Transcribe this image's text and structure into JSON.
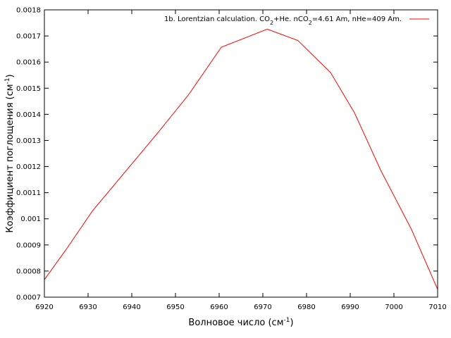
{
  "chart_data": {
    "type": "line",
    "xlabel": "Волновое число (см",
    "xlabel_sup": "-1",
    "xlabel_end": ")",
    "ylabel": "Коэффициент поглощения (см",
    "ylabel_sup": "-1",
    "ylabel_end": ")",
    "xlim": [
      6920,
      7010
    ],
    "ylim": [
      0.0007,
      0.0018
    ],
    "xticks": [
      6920,
      6930,
      6940,
      6950,
      6960,
      6970,
      6980,
      6990,
      7000,
      7010
    ],
    "yticks": [
      0.0007,
      0.0008,
      0.0009,
      0.001,
      0.0011,
      0.0012,
      0.0013,
      0.0014,
      0.0015,
      0.0016,
      0.0017,
      0.0018
    ],
    "xtick_labels": [
      "6920",
      "6930",
      "6940",
      "6950",
      "6960",
      "6970",
      "6980",
      "6990",
      "7000",
      "7010"
    ],
    "ytick_labels": [
      "0.0007",
      "0.0008",
      "0.0009",
      "0.001",
      "0.0011",
      "0.0012",
      "0.0013",
      "0.0014",
      "0.0015",
      "0.0016",
      "0.0017",
      "0.0018"
    ],
    "grid": false,
    "legend_position": "top-right",
    "series": [
      {
        "legend": {
          "prefix": "1b. Lorentzian calculation. CO",
          "sub1": "2",
          "mid": "+He. nCO",
          "sub2": "2",
          "suffix": "=4.61 Am, nHe=409 Am."
        },
        "color": "#ff0000",
        "x": [
          6920,
          6925,
          6931,
          6940,
          6946,
          6953,
          6960.5,
          6971,
          6978,
          6985.5,
          6991,
          6997,
          7004,
          7010
        ],
        "y": [
          0.000767,
          0.000883,
          0.00103,
          0.00121,
          0.00133,
          0.001475,
          0.001657,
          0.001726,
          0.001683,
          0.00156,
          0.001405,
          0.001185,
          0.00096,
          0.00073
        ]
      }
    ]
  }
}
